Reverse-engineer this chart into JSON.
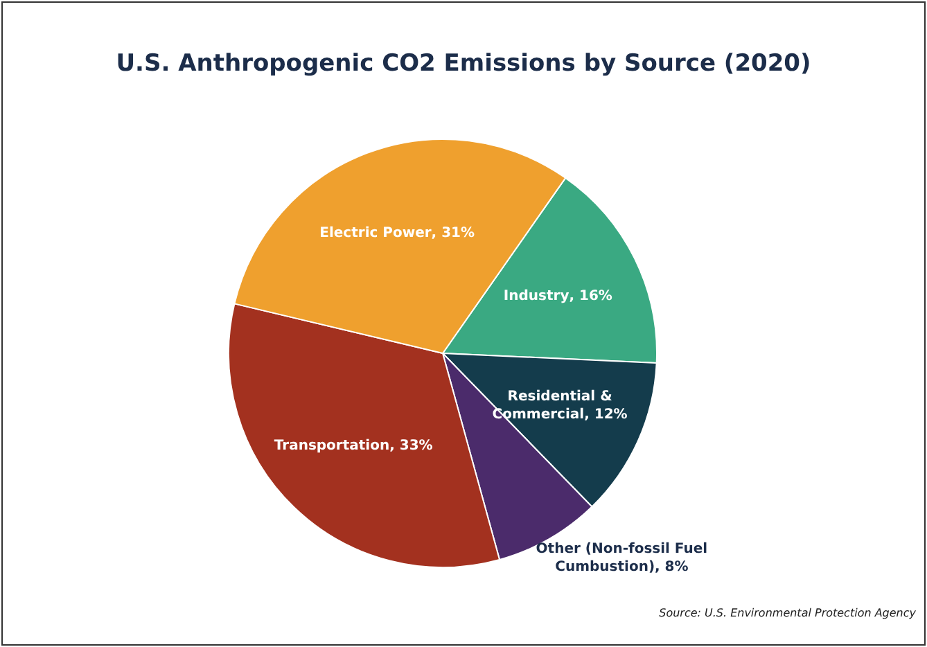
{
  "chart_data": {
    "type": "pie",
    "title": "U.S. Anthropogenic CO2 Emissions by Source (2020)",
    "categories": [
      "Industry",
      "Residential & Commercial",
      "Other (Non-fossil Fuel Cumbustion)",
      "Transportation",
      "Electric Power"
    ],
    "values": [
      16,
      12,
      8,
      33,
      31
    ],
    "colors": [
      "#3aa982",
      "#143c4c",
      "#4b2b6b",
      "#a3311f",
      "#efa02e"
    ],
    "value_labels": [
      ", 16%",
      ", 12%",
      ", 8%",
      ", 33%",
      ", 31%"
    ],
    "annotations": [
      "Source: U.S. Environmental Protection Agency"
    ]
  }
}
